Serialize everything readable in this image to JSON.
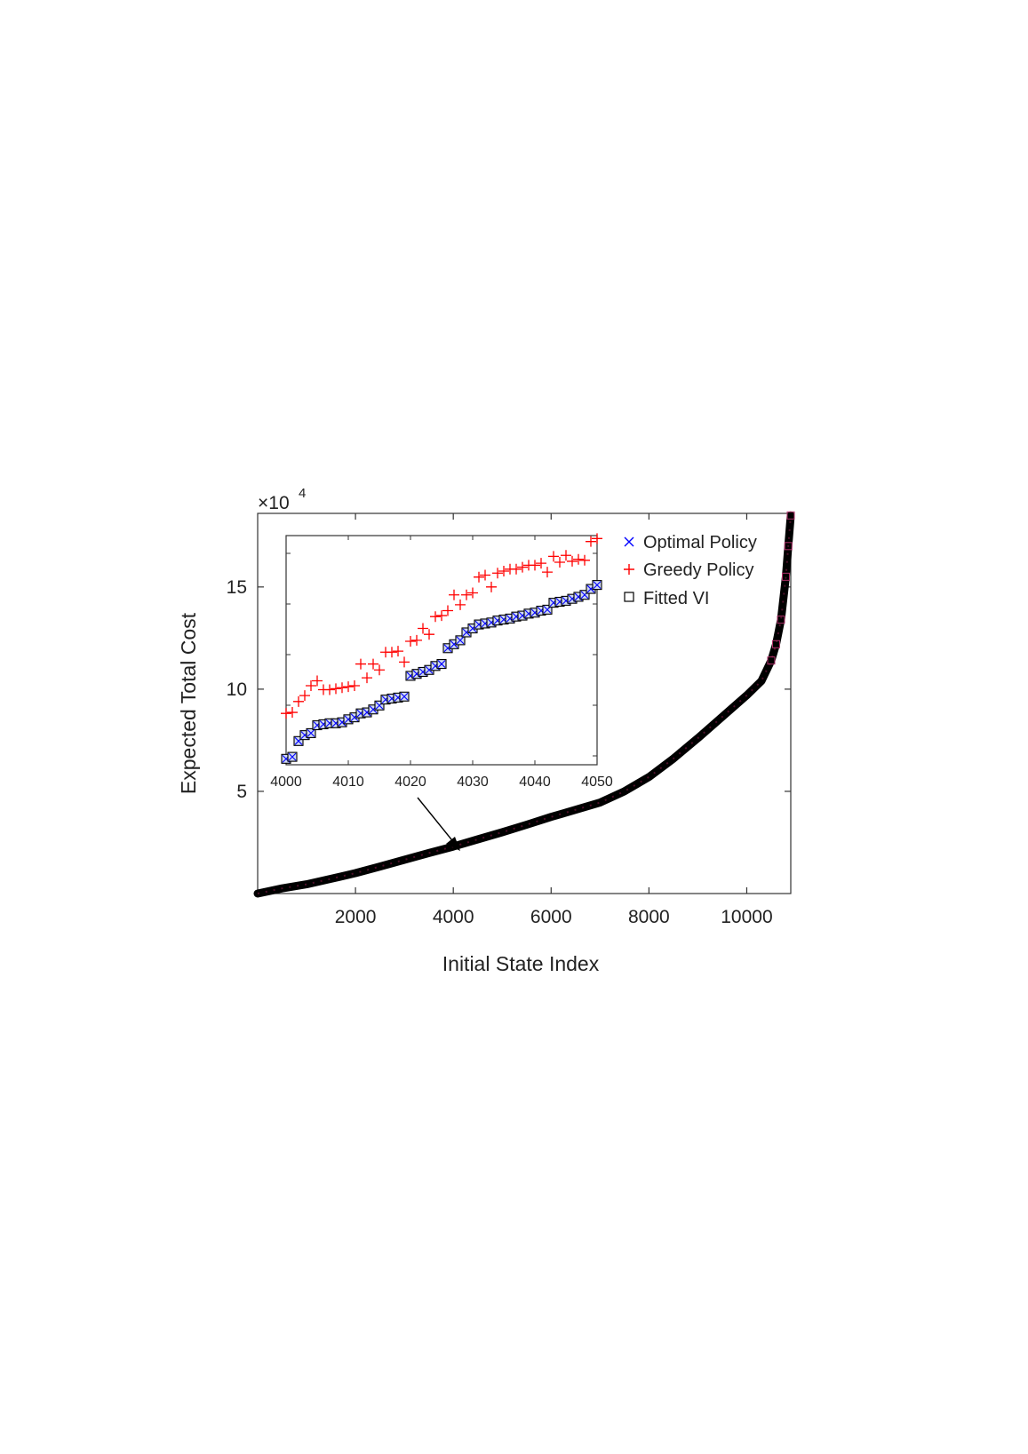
{
  "chart_data": {
    "type": "scatter",
    "xlabel": "Initial State Index",
    "ylabel": "Expected Total Cost",
    "y_multiplier_label": "×10",
    "y_multiplier_exponent": "4",
    "xlim": [
      0,
      10900
    ],
    "ylim": [
      0,
      18.6
    ],
    "y_scale": 10000,
    "xticks": [
      2000,
      4000,
      6000,
      8000,
      10000
    ],
    "xtick_labels": [
      "2000",
      "4000",
      "6000",
      "8000",
      "10000"
    ],
    "yticks": [
      5,
      10,
      15
    ],
    "ytick_labels": [
      "5",
      "10",
      "15"
    ],
    "grid": false,
    "legend_position": "top-right",
    "legend": [
      {
        "label": "Optimal Policy",
        "marker": "x",
        "color": "#0000ff"
      },
      {
        "label": "Greedy Policy",
        "marker": "+",
        "color": "#ff0000"
      },
      {
        "label": "Fitted VI",
        "marker": "square",
        "color": "#000000"
      }
    ],
    "main_curve": {
      "x": [
        0,
        500,
        1000,
        1500,
        2000,
        2500,
        3000,
        3500,
        4000,
        4500,
        5000,
        5500,
        6000,
        6500,
        7000,
        7500,
        8000,
        8500,
        9000,
        9500,
        10000,
        10300,
        10500,
        10600,
        10700,
        10800,
        10850,
        10900
      ],
      "y": [
        0.0,
        0.25,
        0.45,
        0.72,
        1.0,
        1.32,
        1.65,
        1.98,
        2.3,
        2.65,
        3.0,
        3.37,
        3.75,
        4.1,
        4.45,
        5.0,
        5.7,
        6.6,
        7.6,
        8.65,
        9.7,
        10.4,
        11.4,
        12.2,
        13.4,
        15.5,
        17.0,
        18.5
      ]
    },
    "inset": {
      "xlim": [
        4000,
        4050
      ],
      "xticks": [
        4000,
        4010,
        4020,
        4030,
        4040,
        4050
      ],
      "xtick_labels": [
        "4000",
        "4010",
        "4020",
        "4030",
        "4040",
        "4050"
      ],
      "ylim": [
        6.1,
        17.7
      ],
      "x": [
        4000,
        4001,
        4002,
        4003,
        4004,
        4005,
        4006,
        4007,
        4008,
        4009,
        4010,
        4011,
        4012,
        4013,
        4014,
        4015,
        4016,
        4017,
        4018,
        4019,
        4020,
        4021,
        4022,
        4023,
        4024,
        4025,
        4026,
        4027,
        4028,
        4029,
        4030,
        4031,
        4032,
        4033,
        4034,
        4035,
        4036,
        4037,
        4038,
        4039,
        4040,
        4041,
        4042,
        4043,
        4044,
        4045,
        4046,
        4047,
        4048,
        4049,
        4050
      ],
      "optimal": [
        6.4,
        6.5,
        7.3,
        7.6,
        7.7,
        8.1,
        8.15,
        8.2,
        8.2,
        8.25,
        8.4,
        8.5,
        8.7,
        8.75,
        8.9,
        9.1,
        9.4,
        9.45,
        9.5,
        9.55,
        10.6,
        10.7,
        10.8,
        10.9,
        11.1,
        11.2,
        12.0,
        12.2,
        12.4,
        12.8,
        13.0,
        13.2,
        13.25,
        13.3,
        13.4,
        13.45,
        13.5,
        13.6,
        13.65,
        13.75,
        13.8,
        13.9,
        13.95,
        14.3,
        14.35,
        14.4,
        14.5,
        14.6,
        14.7,
        15.0,
        15.2
      ],
      "greedy": [
        8.7,
        8.75,
        9.3,
        9.6,
        10.1,
        10.35,
        9.9,
        9.9,
        9.95,
        10.0,
        10.05,
        10.1,
        11.2,
        10.5,
        11.2,
        10.9,
        11.8,
        11.8,
        11.85,
        11.3,
        12.35,
        12.4,
        13.0,
        12.7,
        13.6,
        13.65,
        13.9,
        14.7,
        14.2,
        14.7,
        14.8,
        15.6,
        15.7,
        15.1,
        15.8,
        15.9,
        16.0,
        16.0,
        16.1,
        16.2,
        16.2,
        16.3,
        15.85,
        16.65,
        16.35,
        16.7,
        16.4,
        16.5,
        16.45,
        17.4,
        17.55
      ]
    }
  }
}
